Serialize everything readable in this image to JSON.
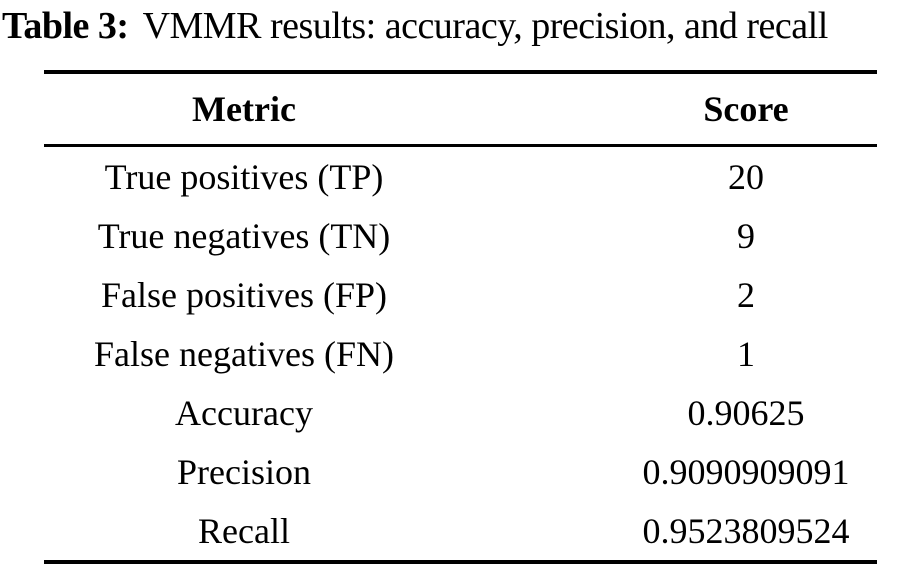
{
  "caption": {
    "label": "Table 3:",
    "text": "VMMR results: accuracy, precision, and recall"
  },
  "table": {
    "headers": [
      "Metric",
      "Score"
    ],
    "rows": [
      {
        "metric": "True positives (TP)",
        "score": "20"
      },
      {
        "metric": "True negatives (TN)",
        "score": "9"
      },
      {
        "metric": "False positives (FP)",
        "score": "2"
      },
      {
        "metric": "False negatives (FN)",
        "score": "1"
      },
      {
        "metric": "Accuracy",
        "score": "0.90625"
      },
      {
        "metric": "Precision",
        "score": "0.9090909091"
      },
      {
        "metric": "Recall",
        "score": "0.9523809524"
      }
    ]
  },
  "colors": {
    "text": "#000000",
    "background": "#ffffff",
    "rule": "#000000"
  }
}
